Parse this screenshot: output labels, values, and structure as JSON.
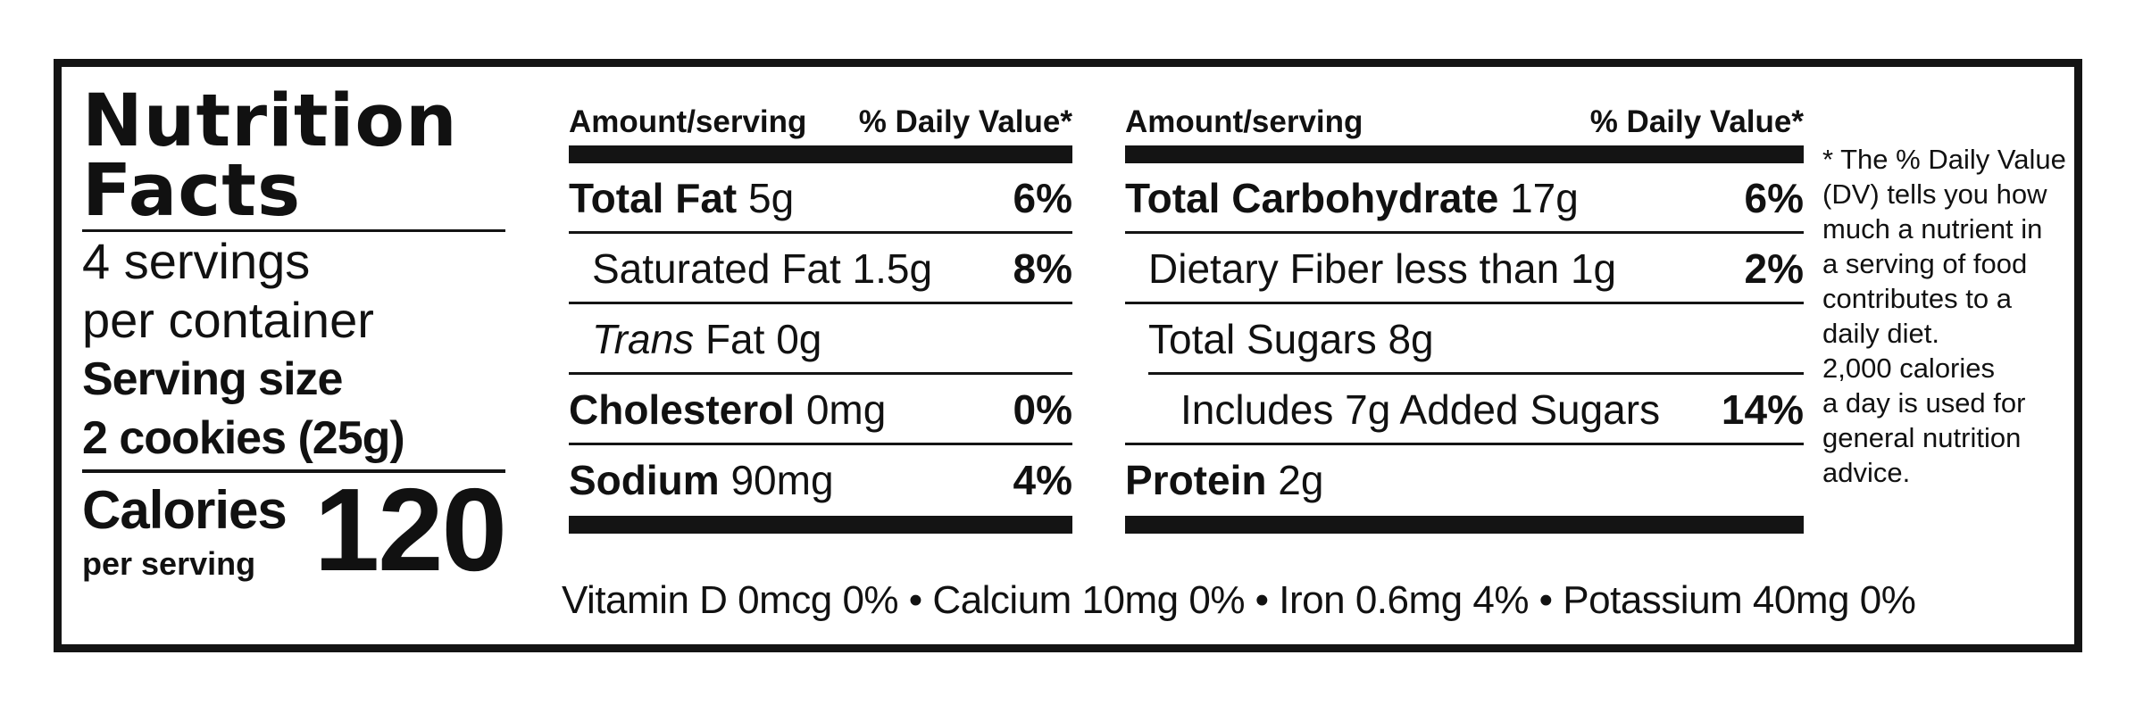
{
  "header": {
    "title_line1": "Nutrition",
    "title_line2": "Facts",
    "servings_line1": "4 servings",
    "servings_line2": "per container",
    "serving_size_label": "Serving size",
    "serving_size_value": "2 cookies (25g)",
    "calories_label": "Calories",
    "calories_sub": "per serving",
    "calories_value": "120"
  },
  "columns": {
    "amount_label": "Amount/serving",
    "dv_label": "% Daily Value*"
  },
  "left_nutrients": [
    {
      "name": "Total Fat",
      "amount": "5g",
      "dv": "6%"
    },
    {
      "name": "Saturated Fat 1.5g",
      "amount": "",
      "dv": "8%"
    },
    {
      "name_italic": "Trans",
      "name": "Fat 0g",
      "dv": ""
    },
    {
      "name": "Cholesterol",
      "amount": "0mg",
      "dv": "0%"
    },
    {
      "name": "Sodium",
      "amount": "90mg",
      "dv": "4%"
    }
  ],
  "right_nutrients": [
    {
      "name": "Total Carbohydrate",
      "amount": "17g",
      "dv": "6%"
    },
    {
      "name": "Dietary Fiber less than 1g",
      "amount": "",
      "dv": "2%"
    },
    {
      "name": "Total Sugars 8g",
      "amount": "",
      "dv": ""
    },
    {
      "name": "Includes 7g Added Sugars",
      "amount": "",
      "dv": "14%"
    },
    {
      "name": "Protein",
      "amount": "2g",
      "dv": ""
    }
  ],
  "vitamins": "Vitamin D 0mcg 0% • Calcium 10mg 0% • Iron 0.6mg 4% • Potassium 40mg 0%",
  "footnote": [
    "* The % Daily Value",
    "(DV) tells you how",
    "much a nutrient in",
    "a serving of food",
    "contributes to a",
    "daily diet.",
    "2,000 calories",
    "a day is used for",
    "general nutrition",
    "advice."
  ]
}
